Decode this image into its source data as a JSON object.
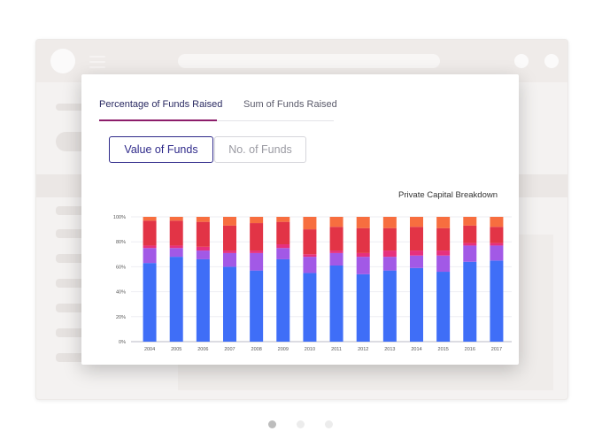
{
  "tabs": [
    {
      "label": "Percentage of Funds Raised",
      "active": true
    },
    {
      "label": "Sum of Funds Raised",
      "active": false
    }
  ],
  "toggle": {
    "options": [
      {
        "label": "Value of Funds",
        "selected": true
      },
      {
        "label": "No. of Funds",
        "selected": false
      }
    ]
  },
  "colors": {
    "accent": "#8c1d6a",
    "toggle_border": "#2f2a8a",
    "series": [
      "#3f6ef7",
      "#a259e6",
      "#e6307d",
      "#e23446",
      "#f76e3f"
    ]
  },
  "carousel": {
    "count": 3,
    "active_index": 0
  },
  "chart_data": {
    "type": "bar",
    "stacked": true,
    "title": "Private Capital Breakdown",
    "xlabel": "",
    "ylabel": "",
    "ylim": [
      0,
      100
    ],
    "y_ticks": [
      "0%",
      "20%",
      "40%",
      "60%",
      "80%",
      "100%"
    ],
    "categories": [
      "2004",
      "2005",
      "2006",
      "2007",
      "2008",
      "2009",
      "2010",
      "2011",
      "2012",
      "2013",
      "2014",
      "2015",
      "2016",
      "2017"
    ],
    "series": [
      {
        "values": [
          63,
          68,
          66,
          60,
          57,
          66,
          55,
          61,
          54,
          57,
          59,
          56,
          64,
          65
        ]
      },
      {
        "values": [
          12,
          7,
          7,
          11,
          14,
          9,
          13,
          10,
          14,
          11,
          10,
          13,
          13,
          12
        ]
      },
      {
        "values": [
          2,
          2,
          3,
          2,
          2,
          3,
          2,
          2,
          3,
          5,
          4,
          4,
          2,
          2
        ]
      },
      {
        "values": [
          20,
          20,
          20,
          20,
          22,
          18,
          20,
          19,
          20,
          18,
          19,
          18,
          14,
          13
        ]
      },
      {
        "values": [
          3,
          3,
          4,
          7,
          5,
          4,
          10,
          8,
          9,
          9,
          8,
          9,
          7,
          8
        ]
      }
    ],
    "grid": true
  }
}
